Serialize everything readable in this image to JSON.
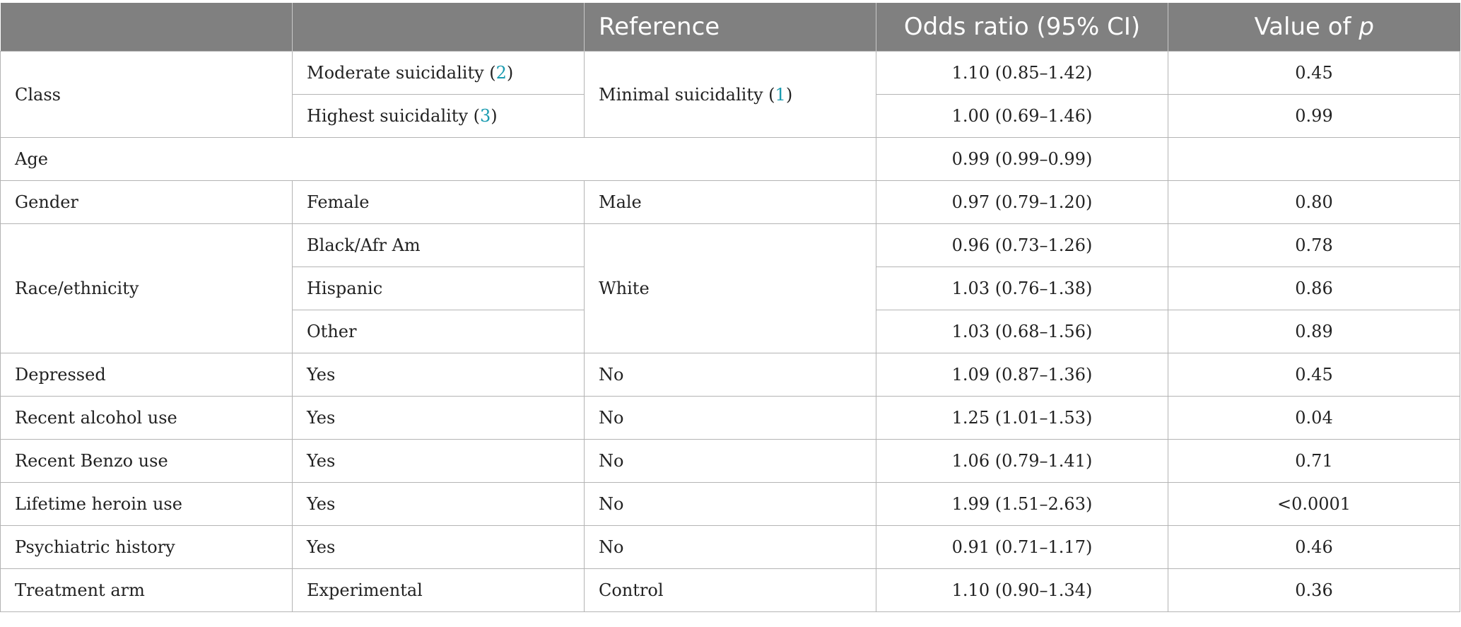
{
  "header": {
    "col1": "",
    "col2": "",
    "col3": "Reference",
    "col4": "Odds ratio (95% CI)",
    "col5_prefix": "Value of ",
    "col5_italic": "p"
  },
  "rows": {
    "class": {
      "label": "Class",
      "reference_pre": "Minimal suicidality (",
      "reference_num": "1",
      "reference_post": ")",
      "moderate": {
        "pre": "Moderate suicidality (",
        "num": "2",
        "post": ")",
        "or": "1.10 (0.85–1.42)",
        "p": "0.45"
      },
      "highest": {
        "pre": "Highest suicidality (",
        "num": "3",
        "post": ")",
        "or": "1.00 (0.69–1.46)",
        "p": "0.99"
      }
    },
    "age": {
      "label": "Age",
      "or": "0.99 (0.99–0.99)",
      "p": ""
    },
    "gender": {
      "label": "Gender",
      "level": "Female",
      "reference": "Male",
      "or": "0.97 (0.79–1.20)",
      "p": "0.80"
    },
    "race": {
      "label": "Race/ethnicity",
      "reference": "White",
      "black": {
        "level": "Black/Afr Am",
        "or": "0.96 (0.73–1.26)",
        "p": "0.78"
      },
      "hispanic": {
        "level": "Hispanic",
        "or": "1.03 (0.76–1.38)",
        "p": "0.86"
      },
      "other": {
        "level": "Other",
        "or": "1.03 (0.68–1.56)",
        "p": "0.89"
      }
    },
    "depressed": {
      "label": "Depressed",
      "level": "Yes",
      "reference": "No",
      "or": "1.09 (0.87–1.36)",
      "p": "0.45"
    },
    "alcohol": {
      "label": "Recent alcohol use",
      "level": "Yes",
      "reference": "No",
      "or": "1.25 (1.01–1.53)",
      "p": "0.04"
    },
    "benzo": {
      "label": "Recent Benzo use",
      "level": "Yes",
      "reference": "No",
      "or": "1.06 (0.79–1.41)",
      "p": "0.71"
    },
    "heroin": {
      "label": "Lifetime heroin use",
      "level": "Yes",
      "reference": "No",
      "or": "1.99 (1.51–2.63)",
      "p": "<0.0001"
    },
    "psych": {
      "label": "Psychiatric history",
      "level": "Yes",
      "reference": "No",
      "or": "0.91 (0.71–1.17)",
      "p": "0.46"
    },
    "treatment": {
      "label": "Treatment arm",
      "level": "Experimental",
      "reference": "Control",
      "or": "1.10 (0.90–1.34)",
      "p": "0.36"
    }
  }
}
